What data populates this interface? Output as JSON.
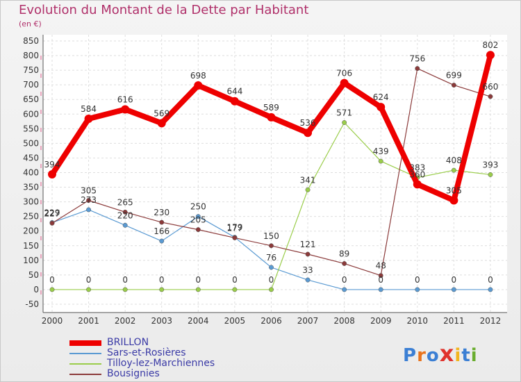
{
  "title": "Evolution du Montant de la Dette par Habitant",
  "unit": "(en €)",
  "logo": "Proxiti",
  "chart_data": {
    "type": "line",
    "x": [
      "2000",
      "2001",
      "2002",
      "2003",
      "2004",
      "2005",
      "2006",
      "2007",
      "2008",
      "2009",
      "2010",
      "2011",
      "2012"
    ],
    "yticks": [
      -50,
      0,
      50,
      100,
      150,
      200,
      250,
      300,
      350,
      400,
      450,
      500,
      550,
      600,
      650,
      700,
      750,
      800,
      850
    ],
    "ylim": [
      -50,
      850
    ],
    "grid": true,
    "legend_position": "bottom-left",
    "series": [
      {
        "name": "BRILLON",
        "color": "#ee0000",
        "values": [
          394,
          584,
          616,
          569,
          698,
          644,
          589,
          536,
          706,
          624,
          360,
          305,
          802
        ],
        "labels": [
          "394",
          "584",
          "616",
          "569",
          "698",
          "644",
          "589",
          "536",
          "706",
          "624",
          "360",
          "305",
          "802"
        ]
      },
      {
        "name": "Sars-et-Rosières",
        "color": "#5a9ad2",
        "values": [
          229,
          273,
          220,
          166,
          250,
          179,
          76,
          33,
          0,
          0,
          0,
          0,
          0
        ],
        "labels": [
          "229",
          "273",
          "220",
          "166",
          "250",
          "179",
          "76",
          "33",
          "0",
          "0",
          "0",
          "0",
          "0"
        ]
      },
      {
        "name": "Tilloy-lez-Marchiennes",
        "color": "#9acd4a",
        "values": [
          0,
          0,
          0,
          0,
          0,
          0,
          0,
          341,
          571,
          439,
          383,
          408,
          393
        ],
        "labels": [
          "0",
          "0",
          "0",
          "0",
          "0",
          "0",
          "0",
          "341",
          "571",
          "439",
          "383",
          "408",
          "393"
        ]
      },
      {
        "name": "Bousignies",
        "color": "#8b3a3a",
        "values": [
          227,
          305,
          265,
          230,
          205,
          177,
          150,
          121,
          89,
          48,
          756,
          699,
          660
        ],
        "labels": [
          "227",
          "305",
          "265",
          "230",
          "205",
          "177",
          "150",
          "121",
          "89",
          "48",
          "756",
          "699",
          "660"
        ]
      }
    ]
  }
}
